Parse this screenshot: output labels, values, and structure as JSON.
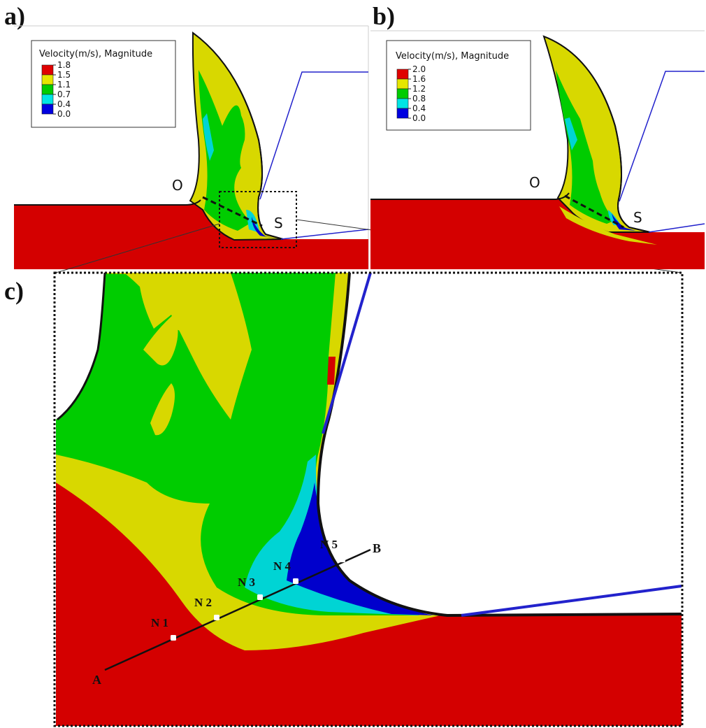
{
  "panels": {
    "a": {
      "label": "a)",
      "legend": {
        "title": "Velocity(m/s), Magnitude",
        "ticks": [
          "1.8",
          "1.5",
          "1.1",
          "0.7",
          "0.4",
          "0.0"
        ]
      },
      "point_o": "O",
      "point_s": "S"
    },
    "b": {
      "label": "b)",
      "legend": {
        "title": "Velocity(m/s), Magnitude",
        "ticks": [
          "2.0",
          "1.6",
          "1.2",
          "0.8",
          "0.4",
          "0.0"
        ]
      },
      "point_o": "O",
      "point_s": "S"
    },
    "c": {
      "label": "c)",
      "line_start": "A",
      "line_end": "B",
      "nodes": [
        "N 1",
        "N 2",
        "N 3",
        "N 4",
        "N 5"
      ]
    }
  },
  "legend_colors": [
    "#e00000",
    "#e6e600",
    "#00cc00",
    "#00e5e5",
    "#0000e0"
  ],
  "colors": {
    "red": "#d40000",
    "yellow": "#d8d800",
    "green": "#00cc00",
    "cyan": "#00d4d4",
    "blue": "#0000cc",
    "tool": "#2222cc"
  }
}
